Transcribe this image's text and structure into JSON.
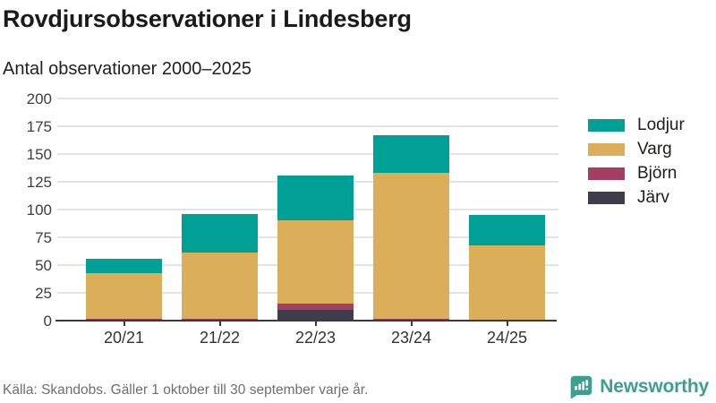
{
  "header": {
    "title": "Rovdjursobservationer i Lindesberg",
    "subtitle": "Antal observationer 2000–2025"
  },
  "chart_data": {
    "type": "bar",
    "stacked": true,
    "title": "Rovdjursobservationer i Lindesberg",
    "subtitle": "Antal observationer 2000–2025",
    "categories": [
      "20/21",
      "21/22",
      "22/23",
      "23/24",
      "24/25"
    ],
    "series": [
      {
        "name": "Lodjur",
        "color": "#00a096",
        "values": [
          13,
          35,
          41,
          34,
          27
        ]
      },
      {
        "name": "Varg",
        "color": "#dbae59",
        "values": [
          41,
          59,
          75,
          131,
          68
        ]
      },
      {
        "name": "Björn",
        "color": "#a43f63",
        "values": [
          2,
          2,
          5,
          2,
          0
        ]
      },
      {
        "name": "Järv",
        "color": "#3f3d4b",
        "values": [
          0,
          0,
          10,
          0,
          0
        ]
      }
    ],
    "stack_order_bottom_to_top": [
      "Järv",
      "Björn",
      "Varg",
      "Lodjur"
    ],
    "totals": [
      56,
      96,
      131,
      167,
      95
    ],
    "ylim": [
      0,
      200
    ],
    "yticks": [
      0,
      25,
      50,
      75,
      100,
      125,
      150,
      175,
      200
    ],
    "grid": true,
    "legend_position": "right",
    "xlabel": "",
    "ylabel": ""
  },
  "footer": {
    "source": "Källa: Skandobs. Gäller 1 oktober till 30 september varje år.",
    "brand": "Newsworthy"
  },
  "colors": {
    "axis": "#3a3a3a",
    "gridline": "#e4e4e4",
    "brand_teal": "#3d9f91",
    "background": "#ffffff"
  }
}
